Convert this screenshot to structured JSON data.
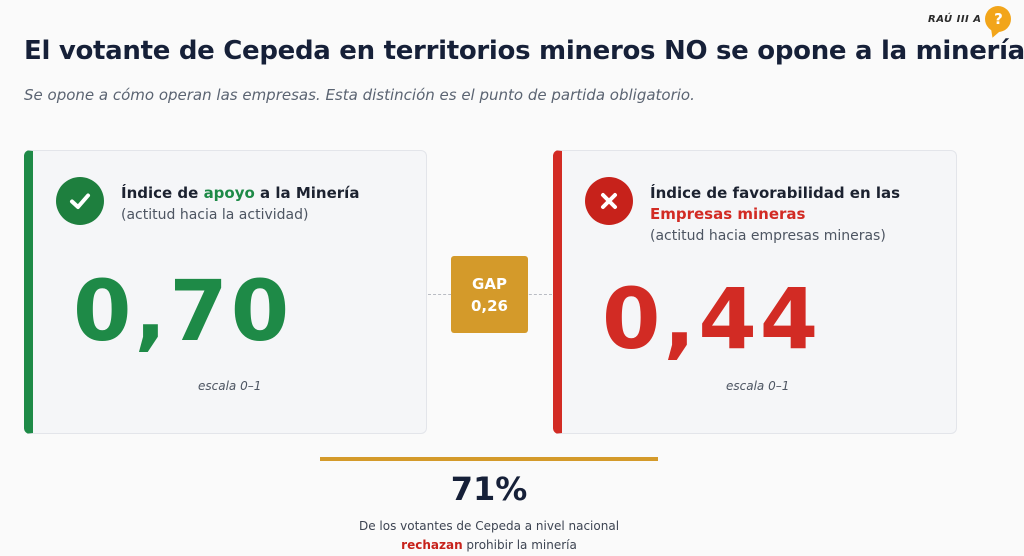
{
  "logo": {
    "text": "RAÚ III A",
    "bubble_glyph": "?"
  },
  "header": {
    "title": "El votante de Cepeda en territorios mineros NO se opone a la minería.",
    "subtitle": "Se opone a cómo operan las empresas. Esta distinción es el punto de partida obligatorio."
  },
  "left_card": {
    "icon": "check-icon",
    "accent_color": "#1e8a47",
    "title_pre": "Índice de ",
    "title_highlight": "apoyo",
    "title_post": " a la Minería",
    "subtitle": "(actitud hacia la actividad)",
    "value": "0,70",
    "scale": "escala 0–1"
  },
  "right_card": {
    "icon": "x-icon",
    "accent_color": "#d22b24",
    "title_line1": "Índice de favorabilidad en las",
    "title_highlight": "Empresas mineras",
    "subtitle": "(actitud hacia empresas mineras)",
    "value": "0,44",
    "scale": "escala 0–1"
  },
  "gap": {
    "label": "GAP",
    "value": "0,26",
    "color": "#d49a2a"
  },
  "footer": {
    "stat": "71%",
    "note_line1": "De los votantes de Cepeda a nivel nacional",
    "note_highlight": "rechazan",
    "note_line2_post": " prohibir la minería"
  }
}
